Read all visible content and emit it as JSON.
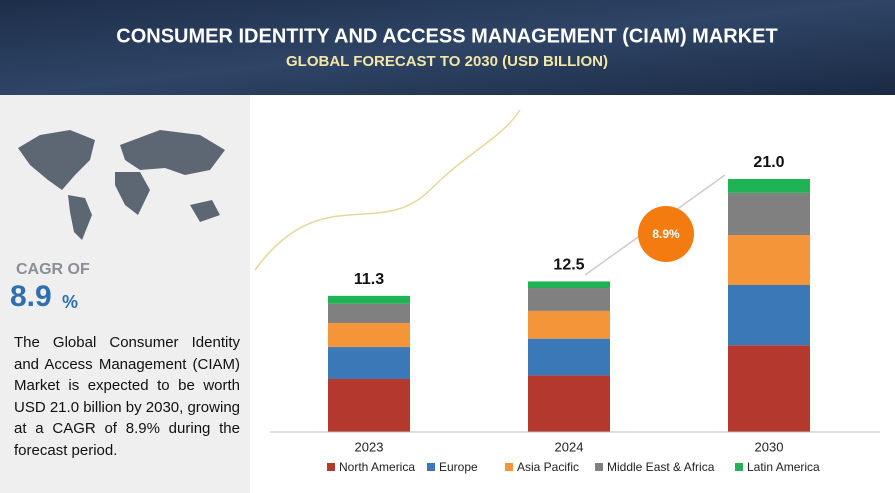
{
  "header": {
    "title": "CONSUMER IDENTITY AND ACCESS MANAGEMENT (CIAM) MARKET",
    "subtitle": "GLOBAL FORECAST TO 2030 (USD BILLION)"
  },
  "cagr": {
    "label": "CAGR OF",
    "value": "8.9",
    "unit": "%",
    "bubble": "8.9%"
  },
  "summary": "The Global Consumer Identity and Access Management (CIAM) Market is expected to be worth USD 21.0 billion by 2030, growing at a CAGR of 8.9% during the forecast period.",
  "chart_data": {
    "type": "stacked-bar",
    "categories": [
      "2023",
      "2024",
      "2030"
    ],
    "series": [
      {
        "name": "North America",
        "color": "#b5382f",
        "values": [
          4.4,
          4.7,
          7.2
        ]
      },
      {
        "name": "Europe",
        "color": "#3a78b8",
        "values": [
          2.65,
          3.05,
          5.0
        ]
      },
      {
        "name": "Asia Pacific",
        "color": "#f5953a",
        "values": [
          2.0,
          2.3,
          4.15
        ]
      },
      {
        "name": "Middle East & Africa",
        "color": "#808080",
        "values": [
          1.6,
          1.9,
          3.5
        ]
      },
      {
        "name": "Latin America",
        "color": "#1fb356",
        "values": [
          0.65,
          0.55,
          1.15
        ]
      }
    ],
    "totals": [
      11.3,
      12.5,
      21
    ],
    "total_labels": [
      "11.3",
      "12.5",
      "21.0"
    ],
    "legend": "bottom"
  }
}
